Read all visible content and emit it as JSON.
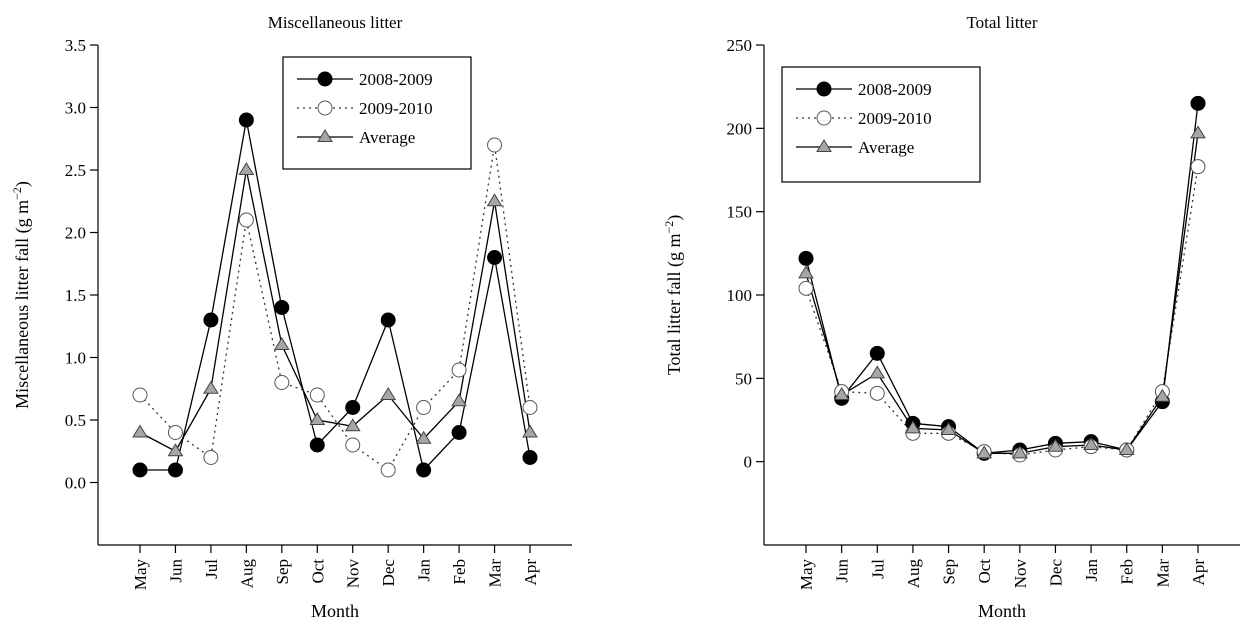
{
  "chart_data": [
    {
      "type": "line",
      "title": "Miscellaneous litter",
      "xlabel": "Month",
      "ylabel": "Miscellaneous litter fall (g m",
      "ylabel_unit_sup": "−2",
      "ylabel_close": ")",
      "categories": [
        "May",
        "Jun",
        "Jul",
        "Aug",
        "Sep",
        "Oct",
        "Nov",
        "Dec",
        "Jan",
        "Feb",
        "Mar",
        "Apr"
      ],
      "ylim": [
        -0.5,
        3.5
      ],
      "yticks": [
        "0.0",
        "0.5",
        "1.0",
        "1.5",
        "2.0",
        "2.5",
        "3.0",
        "3.5"
      ],
      "legend_position": "top-right",
      "series": [
        {
          "name": "2008-2009",
          "style": "solid",
          "marker": "filled-circle",
          "values": [
            0.1,
            0.1,
            1.3,
            2.9,
            1.4,
            0.3,
            0.6,
            1.3,
            0.1,
            0.4,
            1.8,
            0.2
          ]
        },
        {
          "name": "2009-2010",
          "style": "dotted",
          "marker": "open-circle",
          "values": [
            0.7,
            0.4,
            0.2,
            2.1,
            0.8,
            0.7,
            0.3,
            0.1,
            0.6,
            0.9,
            2.7,
            0.6
          ]
        },
        {
          "name": "Average",
          "style": "solid",
          "marker": "gray-triangle",
          "values": [
            0.4,
            0.25,
            0.75,
            2.5,
            1.1,
            0.5,
            0.45,
            0.7,
            0.35,
            0.65,
            2.25,
            0.4
          ]
        }
      ]
    },
    {
      "type": "line",
      "title": "Total litter",
      "xlabel": "Month",
      "ylabel": "Total litter fall (g m",
      "ylabel_unit_sup": "−2",
      "ylabel_close": ")",
      "categories": [
        "May",
        "Jun",
        "Jul",
        "Aug",
        "Sep",
        "Oct",
        "Nov",
        "Dec",
        "Jan",
        "Feb",
        "Mar",
        "Apr"
      ],
      "ylim": [
        -50,
        250
      ],
      "yticks": [
        "0",
        "50",
        "100",
        "150",
        "200",
        "250"
      ],
      "legend_position": "top-left",
      "series": [
        {
          "name": "2008-2009",
          "style": "solid",
          "marker": "filled-circle",
          "values": [
            122,
            38,
            65,
            23,
            21,
            5,
            7,
            11,
            12,
            7,
            36,
            215
          ]
        },
        {
          "name": "2009-2010",
          "style": "dotted",
          "marker": "open-circle",
          "values": [
            104,
            42,
            41,
            17,
            17,
            6,
            4,
            7,
            9,
            7,
            42,
            177
          ]
        },
        {
          "name": "Average",
          "style": "solid",
          "marker": "gray-triangle",
          "values": [
            113,
            40,
            53,
            20,
            19,
            5,
            5,
            9,
            10,
            7,
            39,
            197
          ]
        }
      ]
    }
  ],
  "colors": {
    "axis": "#000000",
    "filled_marker": "#000000",
    "open_marker_fill": "#ffffff",
    "triangle_fill": "#a6a6a6"
  }
}
